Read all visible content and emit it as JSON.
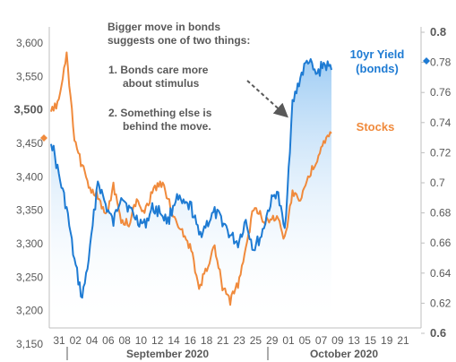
{
  "chart_data": {
    "type": "line",
    "title": "",
    "left_axis": {
      "ylim": [
        3150,
        3600
      ],
      "ticks": [
        3150,
        3200,
        3250,
        3300,
        3350,
        3400,
        3450,
        3500,
        3550,
        3600
      ],
      "tick_labels": [
        "3,150",
        "3,200",
        "3,250",
        "3,300",
        "3,350",
        "3,400",
        "3,450",
        "3,500",
        "3,550",
        "3,600"
      ]
    },
    "right_axis": {
      "ylim": [
        0.6,
        0.8
      ],
      "ticks": [
        0.6,
        0.62,
        0.64,
        0.66,
        0.68,
        0.7,
        0.72,
        0.74,
        0.76,
        0.78,
        0.8
      ],
      "tick_labels": [
        "0.6",
        "0.62",
        "0.64",
        "0.66",
        "0.68",
        "0.7",
        "0.72",
        "0.74",
        "0.76",
        "0.78",
        "0.8"
      ]
    },
    "x_axis": {
      "tick_labels": [
        "31",
        "02",
        "04",
        "06",
        "08",
        "10",
        "12",
        "14",
        "16",
        "18",
        "21",
        "23",
        "25",
        "29",
        "01",
        "05",
        "07",
        "09",
        "13",
        "15",
        "19",
        "21"
      ],
      "month_labels": [
        "September 2020",
        "October 2020"
      ]
    },
    "series": [
      {
        "name": "10yr Yield (bonds)",
        "axis": "right",
        "color": "#1E7BD3",
        "points": [
          [
            "31",
            0.729
          ],
          [
            "01",
            0.705
          ],
          [
            "02",
            0.683
          ],
          [
            "03",
            0.648
          ],
          [
            "04",
            0.623
          ],
          [
            "05",
            0.655
          ],
          [
            "06",
            0.702
          ],
          [
            "07",
            0.685
          ],
          [
            "08",
            0.673
          ],
          [
            "09",
            0.693
          ],
          [
            "10",
            0.683
          ],
          [
            "11",
            0.676
          ],
          [
            "12",
            0.672
          ],
          [
            "13",
            0.683
          ],
          [
            "14",
            0.681
          ],
          [
            "15",
            0.674
          ],
          [
            "16",
            0.69
          ],
          [
            "17",
            0.685
          ],
          [
            "18",
            0.684
          ],
          [
            "20",
            0.665
          ],
          [
            "21",
            0.673
          ],
          [
            "22",
            0.68
          ],
          [
            "23",
            0.675
          ],
          [
            "24",
            0.665
          ],
          [
            "25",
            0.66
          ],
          [
            "27",
            0.675
          ],
          [
            "29",
            0.656
          ],
          [
            "30",
            0.665
          ],
          [
            "01",
            0.684
          ],
          [
            "02",
            0.695
          ],
          [
            "04",
            0.668
          ],
          [
            "05",
            0.752
          ],
          [
            "06",
            0.77
          ],
          [
            "07",
            0.782
          ],
          [
            "08",
            0.771
          ],
          [
            "09",
            0.779
          ],
          [
            "10",
            0.775
          ]
        ]
      },
      {
        "name": "Stocks",
        "axis": "left",
        "color": "#F08A3C",
        "points": [
          [
            "31",
            3495
          ],
          [
            "01",
            3515
          ],
          [
            "02",
            3580
          ],
          [
            "03",
            3455
          ],
          [
            "04",
            3415
          ],
          [
            "05",
            3385
          ],
          [
            "06",
            3370
          ],
          [
            "07",
            3340
          ],
          [
            "08",
            3385
          ],
          [
            "09",
            3335
          ],
          [
            "10",
            3330
          ],
          [
            "11",
            3365
          ],
          [
            "12",
            3350
          ],
          [
            "13",
            3375
          ],
          [
            "14",
            3395
          ],
          [
            "15",
            3370
          ],
          [
            "16",
            3330
          ],
          [
            "17",
            3315
          ],
          [
            "18",
            3290
          ],
          [
            "20",
            3232
          ],
          [
            "21",
            3265
          ],
          [
            "22",
            3295
          ],
          [
            "23",
            3235
          ],
          [
            "24",
            3215
          ],
          [
            "25",
            3240
          ],
          [
            "27",
            3290
          ],
          [
            "29",
            3355
          ],
          [
            "30",
            3340
          ],
          [
            "01",
            3330
          ],
          [
            "02",
            3345
          ],
          [
            "04",
            3305
          ],
          [
            "05",
            3380
          ],
          [
            "06",
            3365
          ],
          [
            "07",
            3400
          ],
          [
            "08",
            3420
          ],
          [
            "09",
            3450
          ],
          [
            "10",
            3465
          ]
        ]
      }
    ],
    "series_labels": [
      {
        "line1": "10yr Yield",
        "line2": "(bonds)",
        "color": "#1E7BD3"
      },
      {
        "line1": "Stocks",
        "line2": "",
        "color": "#F08A3C"
      }
    ],
    "annotation": {
      "lines": [
        "Bigger move in bonds",
        "suggests one of two things:",
        "1. Bonds care more",
        "about stimulus",
        "2.  Something else is",
        "behind the move."
      ]
    },
    "grid": false
  }
}
